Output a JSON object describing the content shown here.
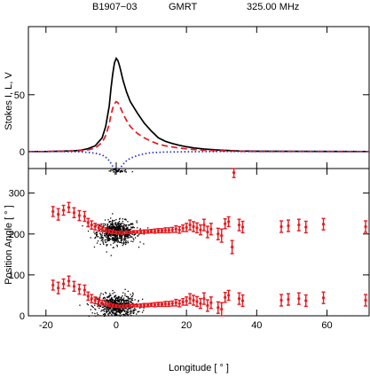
{
  "header": {
    "pulsar": "B1907−03",
    "telescope": "GMRT",
    "frequency": "325.00 MHz"
  },
  "chart_data": [
    {
      "type": "line",
      "panel": "profile",
      "title": "",
      "xlabel": "",
      "ylabel": "Stokes I, L, V",
      "xlim": [
        -25,
        72
      ],
      "ylim": [
        -15,
        110
      ],
      "xticks": [
        -20,
        0,
        20,
        40,
        60
      ],
      "yticks": [
        0,
        50
      ],
      "legend": "none",
      "series": [
        {
          "key": "I",
          "color": "#000000",
          "style": "solid",
          "points": [
            [
              -25,
              0
            ],
            [
              -20,
              0
            ],
            [
              -15,
              0.3
            ],
            [
              -12,
              0.6
            ],
            [
              -10,
              1.2
            ],
            [
              -8,
              2.5
            ],
            [
              -6,
              5
            ],
            [
              -4,
              12
            ],
            [
              -3,
              22
            ],
            [
              -2,
              40
            ],
            [
              -1.5,
              55
            ],
            [
              -1,
              68
            ],
            [
              -0.5,
              78
            ],
            [
              0,
              82
            ],
            [
              0.5,
              80
            ],
            [
              1,
              75
            ],
            [
              2,
              62
            ],
            [
              3,
              52
            ],
            [
              4,
              44
            ],
            [
              6,
              34
            ],
            [
              8,
              25
            ],
            [
              10,
              18
            ],
            [
              12,
              12
            ],
            [
              14,
              9
            ],
            [
              16,
              7
            ],
            [
              18,
              5.5
            ],
            [
              20,
              4.2
            ],
            [
              22,
              3.2
            ],
            [
              25,
              2.2
            ],
            [
              28,
              1.5
            ],
            [
              30,
              1.2
            ],
            [
              35,
              0.5
            ],
            [
              40,
              0.2
            ],
            [
              72,
              0
            ]
          ]
        },
        {
          "key": "L",
          "color": "#e8191e",
          "style": "dashed",
          "points": [
            [
              -25,
              0
            ],
            [
              -20,
              0
            ],
            [
              -15,
              0.2
            ],
            [
              -12,
              0.4
            ],
            [
              -10,
              0.8
            ],
            [
              -8,
              1.5
            ],
            [
              -6,
              3
            ],
            [
              -4,
              8
            ],
            [
              -3,
              14
            ],
            [
              -2,
              24
            ],
            [
              -1.5,
              32
            ],
            [
              -1,
              38
            ],
            [
              -0.5,
              42
            ],
            [
              0,
              44
            ],
            [
              0.5,
              43
            ],
            [
              1,
              40
            ],
            [
              2,
              33
            ],
            [
              3,
              27
            ],
            [
              4,
              22
            ],
            [
              6,
              16
            ],
            [
              8,
              12
            ],
            [
              10,
              9
            ],
            [
              12,
              6.5
            ],
            [
              14,
              5
            ],
            [
              16,
              4
            ],
            [
              18,
              3
            ],
            [
              20,
              2.4
            ],
            [
              22,
              1.8
            ],
            [
              25,
              1.2
            ],
            [
              28,
              0.8
            ],
            [
              30,
              0.6
            ],
            [
              35,
              0.2
            ],
            [
              40,
              0
            ],
            [
              72,
              0
            ]
          ]
        },
        {
          "key": "V",
          "color": "#1f2dd6",
          "style": "dotted",
          "points": [
            [
              -25,
              0
            ],
            [
              -15,
              0
            ],
            [
              -10,
              -0.3
            ],
            [
              -8,
              -0.8
            ],
            [
              -6,
              -1.5
            ],
            [
              -4,
              -3
            ],
            [
              -3,
              -5
            ],
            [
              -2,
              -8
            ],
            [
              -1,
              -13
            ],
            [
              -0.5,
              -15.5
            ],
            [
              0,
              -17.5
            ],
            [
              0.5,
              -17
            ],
            [
              1,
              -15
            ],
            [
              2,
              -11
            ],
            [
              3,
              -8
            ],
            [
              4,
              -6
            ],
            [
              6,
              -3.5
            ],
            [
              8,
              -2
            ],
            [
              10,
              -1
            ],
            [
              14,
              -0.5
            ],
            [
              20,
              -0.2
            ],
            [
              30,
              0
            ],
            [
              72,
              0
            ]
          ]
        }
      ]
    },
    {
      "type": "scatter",
      "panel": "position-angle",
      "title": "",
      "xlabel": "Longitude [ ° ]",
      "ylabel": "Position Angle [ ° ]",
      "xlim": [
        -25,
        72
      ],
      "ylim": [
        0,
        360
      ],
      "xticks": [
        -20,
        0,
        20,
        40,
        60
      ],
      "yticks": [
        0,
        100,
        200,
        300
      ],
      "legend": "none",
      "pa_color": "#e8191e",
      "density_color": "#000000",
      "pa_points": [
        {
          "x": -18,
          "y": 255,
          "err": 12
        },
        {
          "x": -16.5,
          "y": 248,
          "err": 14
        },
        {
          "x": -15,
          "y": 258,
          "err": 12
        },
        {
          "x": -13.5,
          "y": 265,
          "err": 12
        },
        {
          "x": -12,
          "y": 252,
          "err": 12
        },
        {
          "x": -10.5,
          "y": 245,
          "err": 12
        },
        {
          "x": -9,
          "y": 243,
          "err": 12
        },
        {
          "x": -8,
          "y": 228,
          "err": 10
        },
        {
          "x": -7,
          "y": 222,
          "err": 10
        },
        {
          "x": -6,
          "y": 218,
          "err": 8
        },
        {
          "x": -5,
          "y": 215,
          "err": 8
        },
        {
          "x": -4,
          "y": 212,
          "err": 6
        },
        {
          "x": -3,
          "y": 210,
          "err": 5
        },
        {
          "x": -2,
          "y": 207,
          "err": 4
        },
        {
          "x": -1,
          "y": 205,
          "err": 4
        },
        {
          "x": 0,
          "y": 204,
          "err": 3
        },
        {
          "x": 1,
          "y": 203,
          "err": 3
        },
        {
          "x": 2,
          "y": 203,
          "err": 3
        },
        {
          "x": 3,
          "y": 204,
          "err": 3
        },
        {
          "x": 4,
          "y": 204,
          "err": 3
        },
        {
          "x": 5,
          "y": 205,
          "err": 3
        },
        {
          "x": 6,
          "y": 205,
          "err": 3
        },
        {
          "x": 7,
          "y": 205,
          "err": 4
        },
        {
          "x": 8,
          "y": 206,
          "err": 4
        },
        {
          "x": 9,
          "y": 206,
          "err": 4
        },
        {
          "x": 10,
          "y": 207,
          "err": 4
        },
        {
          "x": 11,
          "y": 207,
          "err": 5
        },
        {
          "x": 12,
          "y": 208,
          "err": 5
        },
        {
          "x": 13,
          "y": 208,
          "err": 5
        },
        {
          "x": 14,
          "y": 209,
          "err": 6
        },
        {
          "x": 15,
          "y": 209,
          "err": 6
        },
        {
          "x": 16,
          "y": 210,
          "err": 6
        },
        {
          "x": 17,
          "y": 212,
          "err": 8
        },
        {
          "x": 18,
          "y": 210,
          "err": 8
        },
        {
          "x": 19,
          "y": 214,
          "err": 8
        },
        {
          "x": 20,
          "y": 216,
          "err": 10
        },
        {
          "x": 21,
          "y": 222,
          "err": 12
        },
        {
          "x": 22,
          "y": 218,
          "err": 12
        },
        {
          "x": 23,
          "y": 215,
          "err": 12
        },
        {
          "x": 24,
          "y": 210,
          "err": 12
        },
        {
          "x": 25,
          "y": 222,
          "err": 14
        },
        {
          "x": 26,
          "y": 205,
          "err": 14
        },
        {
          "x": 27,
          "y": 212,
          "err": 14
        },
        {
          "x": 29,
          "y": 200,
          "err": 14
        },
        {
          "x": 30,
          "y": 196,
          "err": 16
        },
        {
          "x": 31,
          "y": 225,
          "err": 12
        },
        {
          "x": 32,
          "y": 230,
          "err": 12
        },
        {
          "x": 33,
          "y": 168,
          "err": 16
        },
        {
          "x": 33.5,
          "y": 350,
          "err": 12
        },
        {
          "x": 35,
          "y": 222,
          "err": 14
        },
        {
          "x": 36,
          "y": 217,
          "err": 14
        },
        {
          "x": 47,
          "y": 218,
          "err": 14
        },
        {
          "x": 49,
          "y": 220,
          "err": 14
        },
        {
          "x": 52,
          "y": 222,
          "err": 14
        },
        {
          "x": 54,
          "y": 217,
          "err": 14
        },
        {
          "x": 59,
          "y": 224,
          "err": 14
        },
        {
          "x": 71,
          "y": 218,
          "err": 14
        },
        {
          "x": -18,
          "y": 75,
          "err": 12
        },
        {
          "x": -16.5,
          "y": 68,
          "err": 14
        },
        {
          "x": -15,
          "y": 78,
          "err": 12
        },
        {
          "x": -13.5,
          "y": 85,
          "err": 12
        },
        {
          "x": -12,
          "y": 72,
          "err": 12
        },
        {
          "x": -10.5,
          "y": 65,
          "err": 12
        },
        {
          "x": -9,
          "y": 63,
          "err": 12
        },
        {
          "x": -8,
          "y": 48,
          "err": 10
        },
        {
          "x": -7,
          "y": 42,
          "err": 10
        },
        {
          "x": -6,
          "y": 38,
          "err": 8
        },
        {
          "x": -5,
          "y": 35,
          "err": 8
        },
        {
          "x": -4,
          "y": 32,
          "err": 6
        },
        {
          "x": -3,
          "y": 30,
          "err": 5
        },
        {
          "x": -2,
          "y": 27,
          "err": 4
        },
        {
          "x": -1,
          "y": 25,
          "err": 4
        },
        {
          "x": 0,
          "y": 24,
          "err": 3
        },
        {
          "x": 1,
          "y": 23,
          "err": 3
        },
        {
          "x": 2,
          "y": 23,
          "err": 3
        },
        {
          "x": 3,
          "y": 24,
          "err": 3
        },
        {
          "x": 4,
          "y": 24,
          "err": 3
        },
        {
          "x": 5,
          "y": 25,
          "err": 3
        },
        {
          "x": 6,
          "y": 25,
          "err": 3
        },
        {
          "x": 7,
          "y": 25,
          "err": 4
        },
        {
          "x": 8,
          "y": 26,
          "err": 4
        },
        {
          "x": 9,
          "y": 26,
          "err": 4
        },
        {
          "x": 10,
          "y": 27,
          "err": 4
        },
        {
          "x": 11,
          "y": 27,
          "err": 5
        },
        {
          "x": 12,
          "y": 28,
          "err": 5
        },
        {
          "x": 13,
          "y": 28,
          "err": 5
        },
        {
          "x": 14,
          "y": 29,
          "err": 6
        },
        {
          "x": 15,
          "y": 29,
          "err": 6
        },
        {
          "x": 16,
          "y": 30,
          "err": 6
        },
        {
          "x": 17,
          "y": 32,
          "err": 8
        },
        {
          "x": 18,
          "y": 30,
          "err": 8
        },
        {
          "x": 19,
          "y": 34,
          "err": 8
        },
        {
          "x": 20,
          "y": 36,
          "err": 10
        },
        {
          "x": 21,
          "y": 42,
          "err": 12
        },
        {
          "x": 22,
          "y": 38,
          "err": 12
        },
        {
          "x": 23,
          "y": 35,
          "err": 12
        },
        {
          "x": 24,
          "y": 30,
          "err": 12
        },
        {
          "x": 25,
          "y": 42,
          "err": 14
        },
        {
          "x": 26,
          "y": 25,
          "err": 14
        },
        {
          "x": 27,
          "y": 32,
          "err": 14
        },
        {
          "x": 29,
          "y": 20,
          "err": 14
        },
        {
          "x": 30,
          "y": 16,
          "err": 16
        },
        {
          "x": 31,
          "y": 45,
          "err": 12
        },
        {
          "x": 32,
          "y": 50,
          "err": 12
        },
        {
          "x": 35,
          "y": 42,
          "err": 14
        },
        {
          "x": 36,
          "y": 37,
          "err": 14
        },
        {
          "x": 47,
          "y": 38,
          "err": 14
        },
        {
          "x": 49,
          "y": 40,
          "err": 14
        },
        {
          "x": 52,
          "y": 42,
          "err": 14
        },
        {
          "x": 54,
          "y": 37,
          "err": 14
        },
        {
          "x": 59,
          "y": 44,
          "err": 14
        },
        {
          "x": 71,
          "y": 38,
          "err": 14
        }
      ],
      "density_clusters": [
        {
          "x": 0,
          "y": 205,
          "sx": 2.8,
          "sy": 14,
          "n": 650
        },
        {
          "x": 0,
          "y": 25,
          "sx": 2.8,
          "sy": 14,
          "n": 650
        },
        {
          "x": 0,
          "y": 355,
          "sx": 1.5,
          "sy": 3,
          "n": 40
        }
      ]
    }
  ]
}
